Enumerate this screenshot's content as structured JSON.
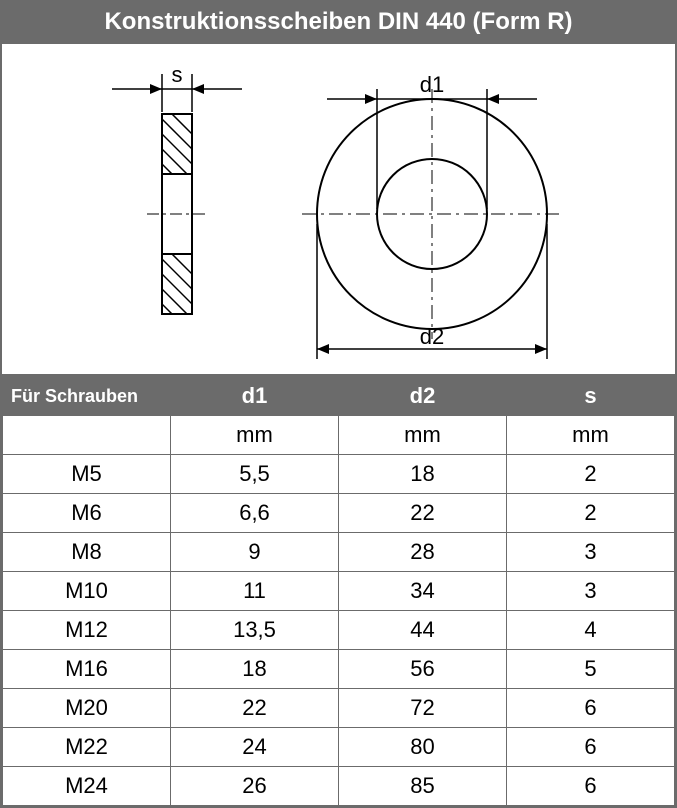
{
  "title": "Konstruktionsscheiben DIN 440 (Form R)",
  "diagram": {
    "s_label": "s",
    "d1_label": "d1",
    "d2_label": "d2",
    "stroke": "#000000",
    "hatch": "#000000",
    "bg": "#ffffff"
  },
  "table": {
    "columns": {
      "screw": {
        "header": "Für Schrauben",
        "unit": ""
      },
      "d1": {
        "header": "d1",
        "unit": "mm"
      },
      "d2": {
        "header": "d2",
        "unit": "mm"
      },
      "s": {
        "header": "s",
        "unit": "mm"
      }
    },
    "rows": [
      {
        "screw": "M5",
        "d1": "5,5",
        "d2": "18",
        "s": "2"
      },
      {
        "screw": "M6",
        "d1": "6,6",
        "d2": "22",
        "s": "2"
      },
      {
        "screw": "M8",
        "d1": "9",
        "d2": "28",
        "s": "3"
      },
      {
        "screw": "M10",
        "d1": "11",
        "d2": "34",
        "s": "3"
      },
      {
        "screw": "M12",
        "d1": "13,5",
        "d2": "44",
        "s": "4"
      },
      {
        "screw": "M16",
        "d1": "18",
        "d2": "56",
        "s": "5"
      },
      {
        "screw": "M20",
        "d1": "22",
        "d2": "72",
        "s": "6"
      },
      {
        "screw": "M22",
        "d1": "24",
        "d2": "80",
        "s": "6"
      },
      {
        "screw": "M24",
        "d1": "26",
        "d2": "85",
        "s": "6"
      }
    ],
    "header_bg": "#6b6b6b",
    "header_fg": "#ffffff",
    "cell_bg": "#ffffff",
    "cell_fg": "#000000",
    "border": "#6b6b6b",
    "font_size_header": 22,
    "font_size_cell": 22
  }
}
